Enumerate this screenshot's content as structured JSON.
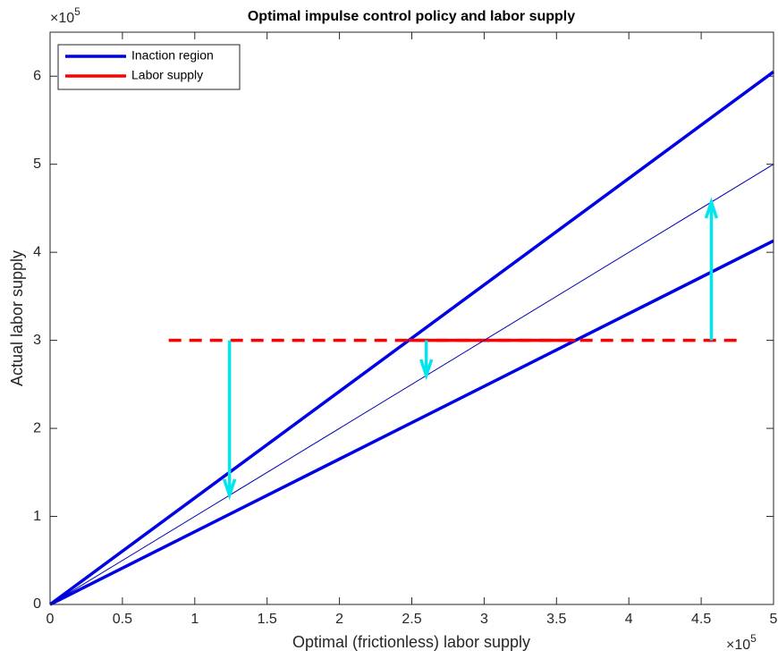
{
  "chart_data": {
    "type": "line",
    "title": "Optimal impulse control policy and labor supply",
    "xlabel": "Optimal (frictionless) labor supply",
    "ylabel": "Actual labor supply",
    "x_multiplier": {
      "base": "×10",
      "exponent": "5"
    },
    "y_multiplier": {
      "base": "×10",
      "exponent": "5"
    },
    "xlim": [
      0,
      5
    ],
    "ylim": [
      0,
      6.5
    ],
    "xticks": [
      0,
      0.5,
      1,
      1.5,
      2,
      2.5,
      3,
      3.5,
      4,
      4.5,
      5
    ],
    "yticks": [
      0,
      1,
      2,
      3,
      4,
      5,
      6
    ],
    "grid": false,
    "legend_position": "upper-left",
    "series": [
      {
        "name": "Inaction region",
        "color": "#0000e6",
        "width": 3.5,
        "style": "solid",
        "x": [
          0,
          5,
          null,
          0,
          5
        ],
        "values": [
          0,
          6.05,
          null,
          0,
          4.13
        ]
      },
      {
        "name": "Labor supply",
        "color": "#ff0000",
        "width": 3.5,
        "style": "dashed",
        "x": [
          0.82,
          4.8
        ],
        "values": [
          3,
          3
        ]
      },
      {
        "color": "#ff0000",
        "width": 3.5,
        "style": "solid",
        "x": [
          2.48,
          3.63
        ],
        "values": [
          3,
          3
        ]
      },
      {
        "color": "#0000b4",
        "width": 1,
        "style": "solid",
        "x": [
          0,
          5
        ],
        "values": [
          0,
          5
        ]
      }
    ],
    "arrow_color": "#00e5ee",
    "arrows": [
      {
        "x": 1.24,
        "from": 3,
        "to": 1.24
      },
      {
        "x": 2.6,
        "from": 3,
        "to": 2.6
      },
      {
        "x": 4.57,
        "from": 3,
        "to": 4.57
      }
    ]
  }
}
